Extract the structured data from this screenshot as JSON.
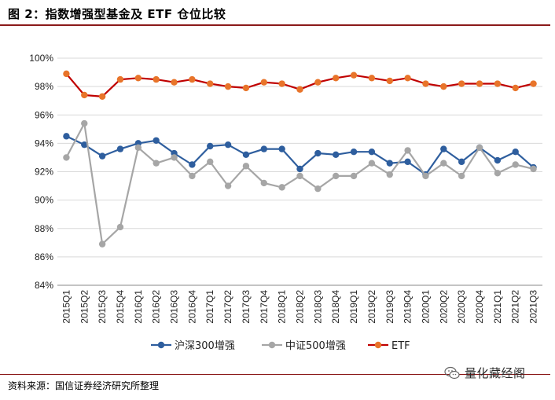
{
  "header": {
    "title": "图 2：指数增强型基金及 ETF 仓位比较"
  },
  "footer": {
    "source": "资料来源：国信证券经济研究所整理",
    "watermark": "量化藏经阁"
  },
  "colors": {
    "hs300": "#2e5e9e",
    "zz500": "#a6a6a6",
    "etf": "#e8742a",
    "etf_line": "#c00000",
    "grid": "#d9d9d9",
    "rule": "#8b1a1a"
  },
  "chart_data": {
    "type": "line",
    "title": "",
    "xlabel": "",
    "ylabel": "",
    "ylim": [
      84,
      100
    ],
    "yticks": [
      84,
      86,
      88,
      90,
      92,
      94,
      96,
      98,
      100
    ],
    "ytick_labels": [
      "84%",
      "86%",
      "88%",
      "90%",
      "92%",
      "94%",
      "96%",
      "98%",
      "100%"
    ],
    "grid": true,
    "legend_position": "bottom",
    "categories": [
      "2015Q1",
      "2015Q2",
      "2015Q3",
      "2015Q4",
      "2016Q1",
      "2016Q2",
      "2016Q3",
      "2016Q4",
      "2017Q1",
      "2017Q2",
      "2017Q3",
      "2017Q4",
      "2018Q1",
      "2018Q2",
      "2018Q3",
      "2018Q4",
      "2019Q1",
      "2019Q2",
      "2019Q3",
      "2019Q4",
      "2020Q1",
      "2020Q2",
      "2020Q3",
      "2020Q4",
      "2021Q1",
      "2021Q2",
      "2021Q3"
    ],
    "series": [
      {
        "name": "沪深300增强",
        "key": "hs300",
        "values": [
          94.5,
          93.9,
          93.1,
          93.6,
          94.0,
          94.2,
          93.3,
          92.5,
          93.8,
          93.9,
          93.2,
          93.6,
          93.6,
          92.2,
          93.3,
          93.2,
          93.4,
          93.4,
          92.6,
          92.7,
          91.8,
          93.6,
          92.7,
          93.7,
          92.8,
          93.4,
          92.3
        ]
      },
      {
        "name": "中证500增强",
        "key": "zz500",
        "values": [
          93.0,
          95.4,
          86.9,
          88.1,
          93.7,
          92.6,
          93.0,
          91.7,
          92.7,
          91.0,
          92.4,
          91.2,
          90.9,
          91.7,
          90.8,
          91.7,
          91.7,
          92.6,
          91.8,
          93.5,
          91.7,
          92.6,
          91.7,
          93.7,
          91.9,
          92.5,
          92.2
        ]
      },
      {
        "name": "ETF",
        "key": "etf",
        "values": [
          98.9,
          97.4,
          97.3,
          98.5,
          98.6,
          98.5,
          98.3,
          98.5,
          98.2,
          98.0,
          97.9,
          98.3,
          98.2,
          97.8,
          98.3,
          98.6,
          98.8,
          98.6,
          98.4,
          98.6,
          98.2,
          98.0,
          98.2,
          98.2,
          98.2,
          97.9,
          98.2
        ]
      }
    ]
  }
}
